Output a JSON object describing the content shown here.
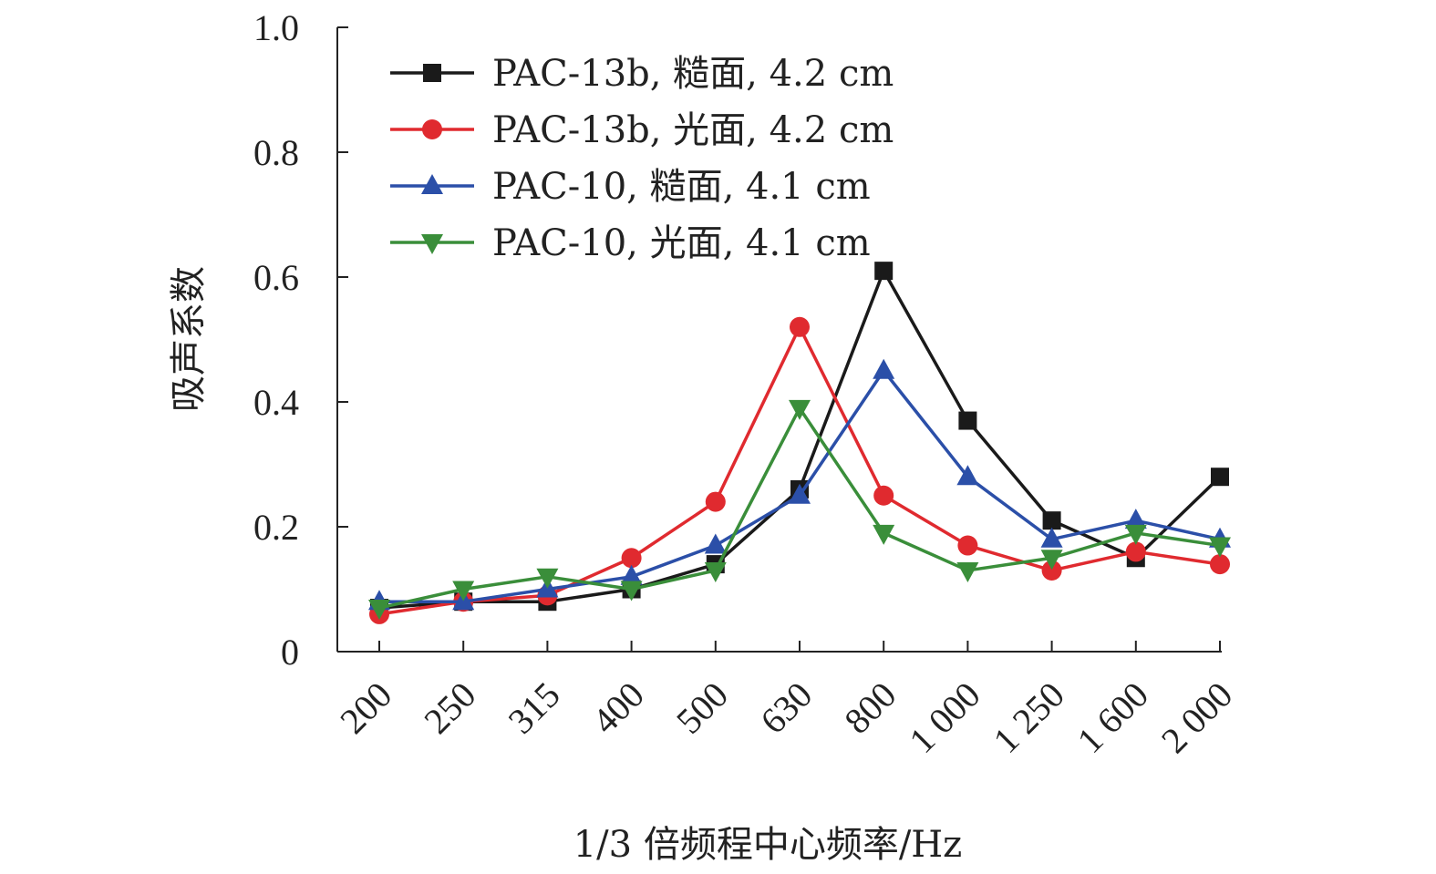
{
  "chart_data": {
    "type": "line",
    "categories": [
      "200",
      "250",
      "315",
      "400",
      "500",
      "630",
      "800",
      "1 000",
      "1 250",
      "1 600",
      "2 000"
    ],
    "xlabel": "1/3 倍频程中心频率/Hz",
    "ylabel": "吸声系数",
    "ylim": [
      0,
      1.0
    ],
    "yticks": [
      0,
      0.2,
      0.4,
      0.6,
      0.8,
      1.0
    ],
    "ytick_labels": [
      "0",
      "0.2",
      "0.4",
      "0.6",
      "0.8",
      "1.0"
    ],
    "grid": false,
    "legend_position": "top-left",
    "series": [
      {
        "name": "PAC-13b, 糙面, 4.2 cm",
        "color": "#1a1a1a",
        "marker": "square",
        "values": [
          0.07,
          0.08,
          0.08,
          0.1,
          0.14,
          0.26,
          0.61,
          0.37,
          0.21,
          0.15,
          0.28
        ]
      },
      {
        "name": "PAC-13b, 光面, 4.2 cm",
        "color": "#e02a2f",
        "marker": "circle",
        "values": [
          0.06,
          0.08,
          0.09,
          0.15,
          0.24,
          0.52,
          0.25,
          0.17,
          0.13,
          0.16,
          0.14
        ]
      },
      {
        "name": "PAC-10, 糙面, 4.1 cm",
        "color": "#2b4fa8",
        "marker": "triangle-up",
        "values": [
          0.08,
          0.08,
          0.1,
          0.12,
          0.17,
          0.25,
          0.45,
          0.28,
          0.18,
          0.21,
          0.18
        ]
      },
      {
        "name": "PAC-10, 光面, 4.1 cm",
        "color": "#3a8e3a",
        "marker": "triangle-down",
        "values": [
          0.07,
          0.1,
          0.12,
          0.1,
          0.13,
          0.39,
          0.19,
          0.13,
          0.15,
          0.19,
          0.17
        ]
      }
    ]
  }
}
